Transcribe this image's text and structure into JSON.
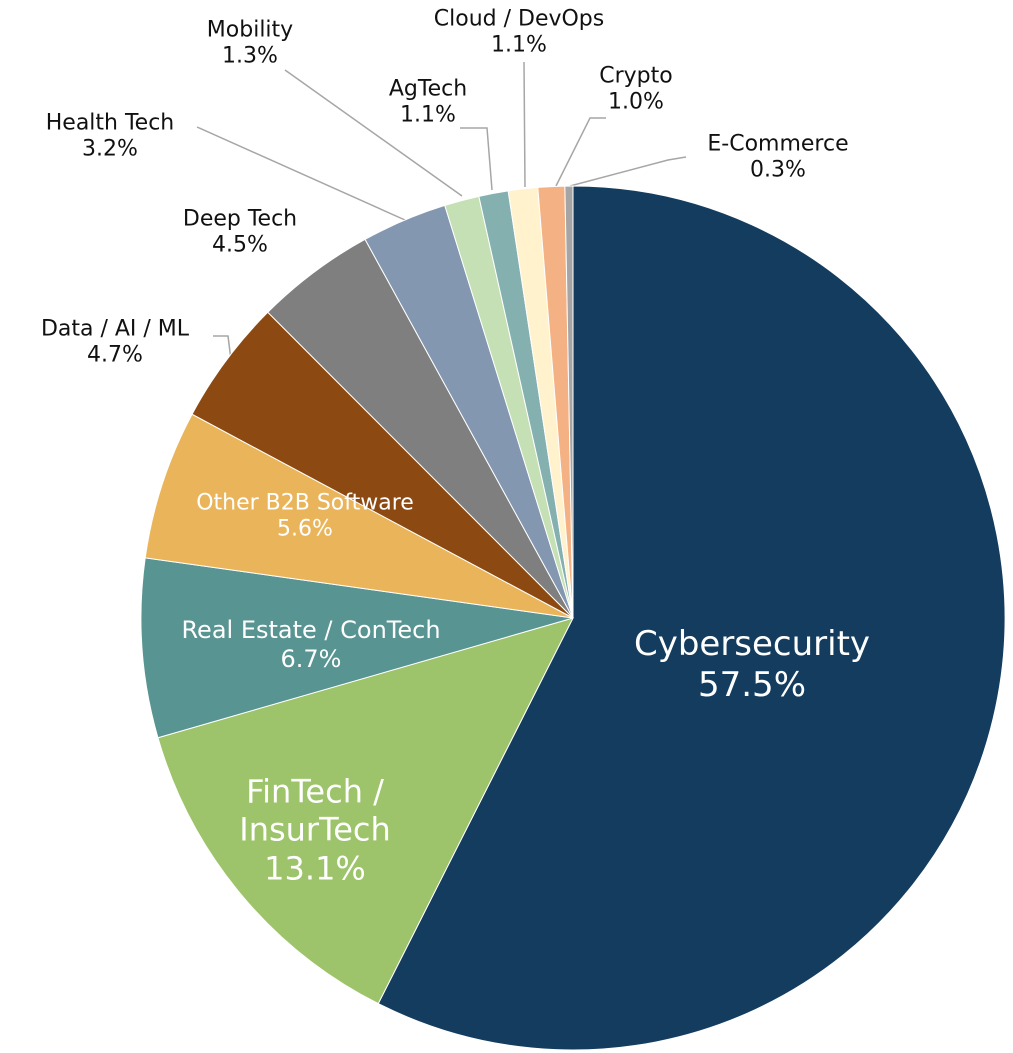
{
  "chart_data": {
    "type": "pie",
    "categories": [
      "Cybersecurity",
      "FinTech / InsurTech",
      "Real Estate / ConTech",
      "Other B2B Software",
      "Data / AI / ML",
      "Deep Tech",
      "Health Tech",
      "Mobility",
      "AgTech",
      "Cloud / DevOps",
      "Crypto",
      "E-Commerce"
    ],
    "values": [
      57.5,
      13.1,
      6.7,
      5.6,
      4.7,
      4.5,
      3.2,
      1.3,
      1.1,
      1.1,
      1.0,
      0.3
    ],
    "value_labels": [
      "57.5%",
      "13.1%",
      "6.7%",
      "5.6%",
      "4.7%",
      "4.5%",
      "3.2%",
      "1.3%",
      "1.1%",
      "1.1%",
      "1.0%",
      "0.3%"
    ],
    "colors": [
      "#143c5e",
      "#9dc46a",
      "#589492",
      "#eab55a",
      "#8c4a12",
      "#7f7f7f",
      "#8497b0",
      "#c5e0b4",
      "#84b0b0",
      "#fff2cc",
      "#f4b183",
      "#a5a5a5"
    ]
  }
}
